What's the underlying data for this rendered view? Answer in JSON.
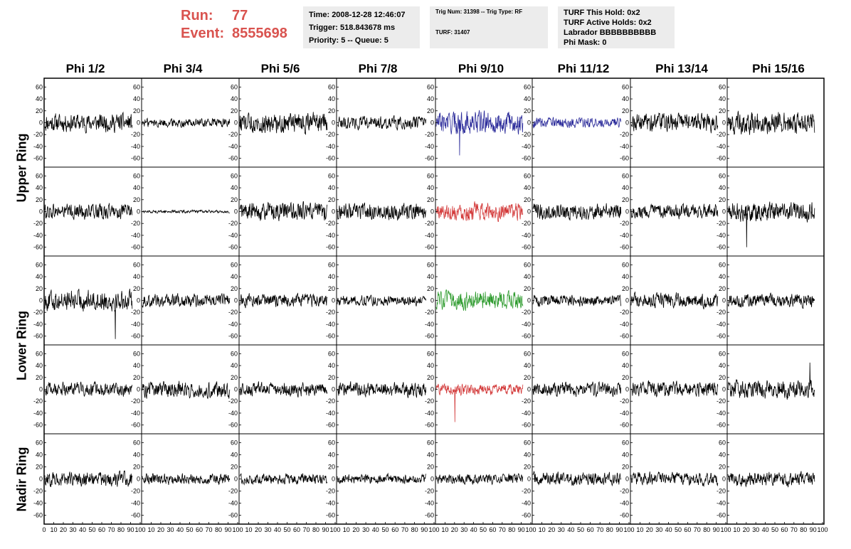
{
  "header": {
    "run_label": "Run:",
    "run_value": "77",
    "event_label": "Event:",
    "event_value": "8555698",
    "time": "Time: 2008-12-28 12:46:07",
    "trigger": "Trigger: 518.843678 ms",
    "priority": "Priority: 5 -- Queue: 5",
    "trig_num": "Trig Num: 31398 -- Trig Type: RF",
    "turf": "TURF: 31407",
    "turf_this_hold": "TURF This Hold: 0x2",
    "turf_active_holds": "TURF Active Holds: 0x2",
    "labrador": "Labrador BBBBBBBBBB",
    "phi_mask": "Phi Mask: 0"
  },
  "columns": [
    "Phi 1/2",
    "Phi 3/4",
    "Phi 5/6",
    "Phi 7/8",
    "Phi 9/10",
    "Phi 11/12",
    "Phi 13/14",
    "Phi 15/16"
  ],
  "ring_labels": [
    {
      "label": "Upper Ring",
      "rows": [
        0,
        1
      ]
    },
    {
      "label": "Lower Ring",
      "rows": [
        2,
        3
      ]
    },
    {
      "label": "Nadir Ring",
      "rows": [
        4
      ]
    }
  ],
  "colors": {
    "default_trace": "#000000",
    "blue_trace": "#2b2b9a",
    "red_trace": "#d33a3a",
    "green_trace": "#2e9b2e",
    "run_text": "#d9534f",
    "info_box_bg": "#ececec"
  },
  "chart_data": {
    "type": "line",
    "title": "",
    "xlabel": "",
    "ylabel": "",
    "xlim": [
      0,
      100
    ],
    "ylim": [
      -70,
      70
    ],
    "y_ticks": [
      -60,
      -40,
      -20,
      0,
      20,
      40,
      60
    ],
    "x_ticks": [
      0,
      10,
      20,
      30,
      40,
      50,
      60,
      70,
      80,
      90,
      100
    ],
    "samples_per_trace": 260,
    "x_extent": [
      0,
      93
    ],
    "grid": false,
    "panels": [
      [
        {
          "amp": 20,
          "color": "default",
          "spike": null
        },
        {
          "amp": 10,
          "color": "default",
          "spike": null
        },
        {
          "amp": 22,
          "color": "default",
          "spike": null
        },
        {
          "amp": 14,
          "color": "default",
          "spike": null
        },
        {
          "amp": 24,
          "color": "blue",
          "spike": [
            25,
            -55
          ]
        },
        {
          "amp": 11,
          "color": "blue",
          "spike": null
        },
        {
          "amp": 20,
          "color": "default",
          "spike": null
        },
        {
          "amp": 24,
          "color": "default",
          "spike": null
        }
      ],
      [
        {
          "amp": 17,
          "color": "default",
          "spike": null
        },
        {
          "amp": 3,
          "color": "default",
          "spike": null
        },
        {
          "amp": 20,
          "color": "default",
          "spike": null
        },
        {
          "amp": 18,
          "color": "default",
          "spike": null
        },
        {
          "amp": 19,
          "color": "red",
          "spike": null
        },
        {
          "amp": 18,
          "color": "default",
          "spike": null
        },
        {
          "amp": 15,
          "color": "default",
          "spike": null
        },
        {
          "amp": 21,
          "color": "default",
          "spike": [
            20,
            -60
          ]
        }
      ],
      [
        {
          "amp": 22,
          "color": "default",
          "spike": [
            75,
            -65
          ]
        },
        {
          "amp": 14,
          "color": "default",
          "spike": null
        },
        {
          "amp": 14,
          "color": "default",
          "spike": null
        },
        {
          "amp": 11,
          "color": "default",
          "spike": null
        },
        {
          "amp": 20,
          "color": "green",
          "spike": null
        },
        {
          "amp": 12,
          "color": "default",
          "spike": null
        },
        {
          "amp": 16,
          "color": "default",
          "spike": null
        },
        {
          "amp": 14,
          "color": "default",
          "spike": null
        }
      ],
      [
        {
          "amp": 15,
          "color": "default",
          "spike": null
        },
        {
          "amp": 18,
          "color": "default",
          "spike": null
        },
        {
          "amp": 15,
          "color": "default",
          "spike": null
        },
        {
          "amp": 16,
          "color": "default",
          "spike": null
        },
        {
          "amp": 12,
          "color": "red",
          "spike": [
            20,
            -55
          ]
        },
        {
          "amp": 15,
          "color": "default",
          "spike": null
        },
        {
          "amp": 17,
          "color": "default",
          "spike": null
        },
        {
          "amp": 20,
          "color": "default",
          "spike": [
            88,
            45
          ]
        }
      ],
      [
        {
          "amp": 16,
          "color": "default",
          "spike": null
        },
        {
          "amp": 12,
          "color": "default",
          "spike": null
        },
        {
          "amp": 11,
          "color": "default",
          "spike": null
        },
        {
          "amp": 10,
          "color": "default",
          "spike": null
        },
        {
          "amp": 11,
          "color": "default",
          "spike": null
        },
        {
          "amp": 14,
          "color": "default",
          "spike": null
        },
        {
          "amp": 14,
          "color": "default",
          "spike": null
        },
        {
          "amp": 15,
          "color": "default",
          "spike": null
        }
      ]
    ]
  }
}
